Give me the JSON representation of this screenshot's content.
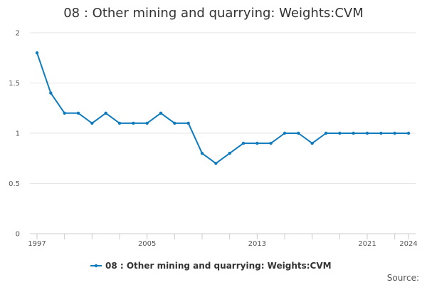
{
  "chart_data": {
    "type": "line",
    "title": "08 : Other mining and quarrying: Weights:CVM",
    "xlabel": "",
    "ylabel": "",
    "x": [
      1997,
      1998,
      1999,
      2000,
      2001,
      2002,
      2003,
      2004,
      2005,
      2006,
      2007,
      2008,
      2009,
      2010,
      2011,
      2012,
      2013,
      2014,
      2015,
      2016,
      2017,
      2018,
      2019,
      2020,
      2021,
      2022,
      2023,
      2024
    ],
    "series": [
      {
        "name": "08 : Other mining and quarrying: Weights:CVM",
        "color": "#0f7bbd",
        "values": [
          1.8,
          1.4,
          1.2,
          1.2,
          1.1,
          1.2,
          1.1,
          1.1,
          1.1,
          1.2,
          1.1,
          1.1,
          0.8,
          0.7,
          0.8,
          0.9,
          0.9,
          0.9,
          1.0,
          1.0,
          0.9,
          1.0,
          1.0,
          1.0,
          1.0,
          1.0,
          1.0,
          1.0
        ]
      }
    ],
    "xlim": [
      1997,
      2024
    ],
    "ylim": [
      0,
      2
    ],
    "y_ticks": [
      "0",
      "0.5",
      "1",
      "1.5",
      "2"
    ],
    "y_tick_values": [
      0,
      0.5,
      1,
      1.5,
      2
    ],
    "x_tick_labels": [
      "1997",
      "2005",
      "2013",
      "2021",
      "2024"
    ],
    "x_tick_label_values": [
      1997,
      2005,
      2013,
      2021,
      2024
    ],
    "grid": true,
    "legend_position": "bottom-center",
    "source_label": "Source:"
  }
}
